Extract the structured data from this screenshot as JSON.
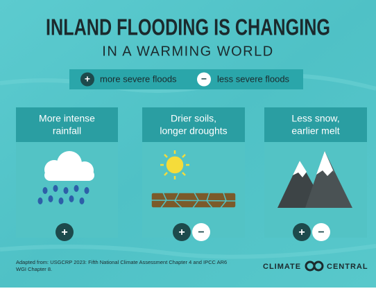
{
  "header": {
    "title": "INLAND FLOODING IS CHANGING",
    "subtitle": "IN A WARMING WORLD"
  },
  "legend": [
    {
      "symbol": "+",
      "label": "more severe floods"
    },
    {
      "symbol": "−",
      "label": "less severe floods"
    }
  ],
  "panels": [
    {
      "title_lines": [
        "More intense",
        "rainfall"
      ],
      "effects": [
        "+"
      ]
    },
    {
      "title_lines": [
        "Drier soils,",
        "longer droughts"
      ],
      "effects": [
        "+",
        "−"
      ]
    },
    {
      "title_lines": [
        "Less snow,",
        "earlier melt"
      ],
      "effects": [
        "+",
        "−"
      ]
    }
  ],
  "footer": {
    "source_lines": [
      "Adapted from: USGCRP 2023: Fifth National Climate Assessment Chapter 4 and IPCC AR6",
      "WGI Chapter 8."
    ],
    "logo": [
      "CLIMATE",
      "CENTRAL"
    ]
  }
}
